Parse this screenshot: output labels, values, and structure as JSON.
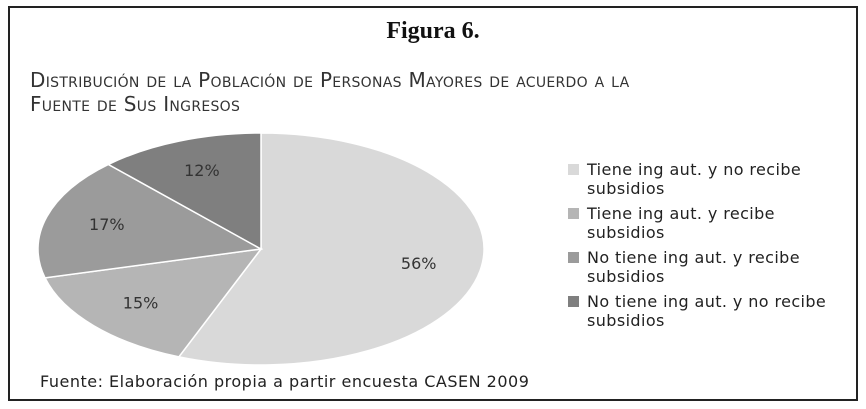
{
  "chart_data": {
    "type": "pie",
    "title": "Figura 6.",
    "subtitle": "Distribución de la Población de Personas Mayores de acuerdo a la Fuente de  Sus Ingresos",
    "categories": [
      "Tiene ing aut. y no recibe subsidios",
      "Tiene ing aut. y recibe subsidios",
      "No tiene ing aut. y recibe subsidios",
      "No tiene ing aut. y no recibe subsidios"
    ],
    "values": [
      56,
      15,
      17,
      12
    ],
    "value_labels": [
      "56%",
      "15%",
      "17%",
      "12%"
    ],
    "colors": [
      "#d9d9d9",
      "#b5b5b5",
      "#9b9b9b",
      "#7f7f7f"
    ],
    "source": "Fuente: Elaboración propia a partir encuesta CASEN 2009"
  }
}
